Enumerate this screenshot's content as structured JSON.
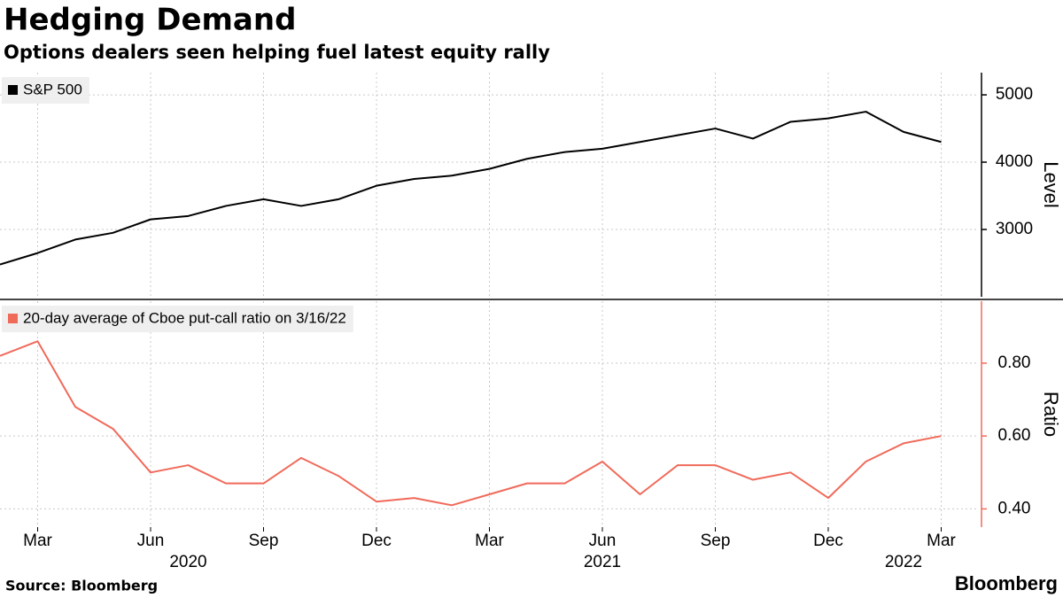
{
  "title": "Hedging Demand",
  "subtitle": "Options dealers seen helping fuel latest equity rally",
  "source": "Source: Bloomberg",
  "logo": "Bloomberg",
  "chart_data": [
    {
      "type": "line",
      "x": [
        "2020-02",
        "2020-03",
        "2020-04",
        "2020-05",
        "2020-06",
        "2020-07",
        "2020-08",
        "2020-09",
        "2020-10",
        "2020-11",
        "2020-12",
        "2021-01",
        "2021-02",
        "2021-03",
        "2021-04",
        "2021-05",
        "2021-06",
        "2021-07",
        "2021-08",
        "2021-09",
        "2021-10",
        "2021-11",
        "2021-12",
        "2022-01",
        "2022-02",
        "2022-03"
      ],
      "xlim": [
        "2020-02",
        "2022-04"
      ],
      "series": [
        {
          "name": "S&P 500",
          "color": "#000000",
          "values": [
            2480,
            2650,
            2850,
            2950,
            3150,
            3200,
            3350,
            3450,
            3350,
            3450,
            3650,
            3750,
            3800,
            3900,
            4050,
            4150,
            4200,
            4300,
            4400,
            4500,
            4350,
            4600,
            4650,
            4750,
            4450,
            4300
          ]
        }
      ],
      "ylim": [
        2000,
        5330
      ],
      "yticks": [
        3000,
        4000,
        5000
      ],
      "y_label": "Level",
      "grid": true
    },
    {
      "type": "line",
      "x": [
        "2020-02",
        "2020-03",
        "2020-04",
        "2020-05",
        "2020-06",
        "2020-07",
        "2020-08",
        "2020-09",
        "2020-10",
        "2020-11",
        "2020-12",
        "2021-01",
        "2021-02",
        "2021-03",
        "2021-04",
        "2021-05",
        "2021-06",
        "2021-07",
        "2021-08",
        "2021-09",
        "2021-10",
        "2021-11",
        "2021-12",
        "2022-01",
        "2022-02",
        "2022-03"
      ],
      "xlim": [
        "2020-02",
        "2022-04"
      ],
      "series": [
        {
          "name": "20-day average of Cboe put-call ratio on 3/16/22",
          "color": "#f06a5a",
          "values": [
            0.82,
            0.86,
            0.68,
            0.62,
            0.5,
            0.52,
            0.47,
            0.47,
            0.54,
            0.49,
            0.42,
            0.43,
            0.41,
            0.44,
            0.47,
            0.47,
            0.53,
            0.44,
            0.52,
            0.52,
            0.48,
            0.5,
            0.43,
            0.53,
            0.58,
            0.6
          ]
        }
      ],
      "ylim": [
        0.35,
        0.97
      ],
      "yticks": [
        {
          "value": 0.4,
          "label": "0.40"
        },
        {
          "value": 0.6,
          "label": "0.60"
        },
        {
          "value": 0.8,
          "label": "0.80"
        }
      ],
      "y_label": "Ratio",
      "grid": true,
      "xticks": [
        {
          "value": "2020-03",
          "label": "Mar"
        },
        {
          "value": "2020-06",
          "label": "Jun"
        },
        {
          "value": "2020-09",
          "label": "Sep"
        },
        {
          "value": "2020-12",
          "label": "Dec"
        },
        {
          "value": "2021-03",
          "label": "Mar"
        },
        {
          "value": "2021-06",
          "label": "Jun"
        },
        {
          "value": "2021-09",
          "label": "Sep"
        },
        {
          "value": "2021-12",
          "label": "Dec"
        },
        {
          "value": "2022-03",
          "label": "Mar"
        }
      ],
      "year_labels": [
        {
          "value": "2020-07",
          "label": "2020"
        },
        {
          "value": "2021-06",
          "label": "2021"
        },
        {
          "value": "2022-02",
          "label": "2022"
        }
      ]
    }
  ]
}
